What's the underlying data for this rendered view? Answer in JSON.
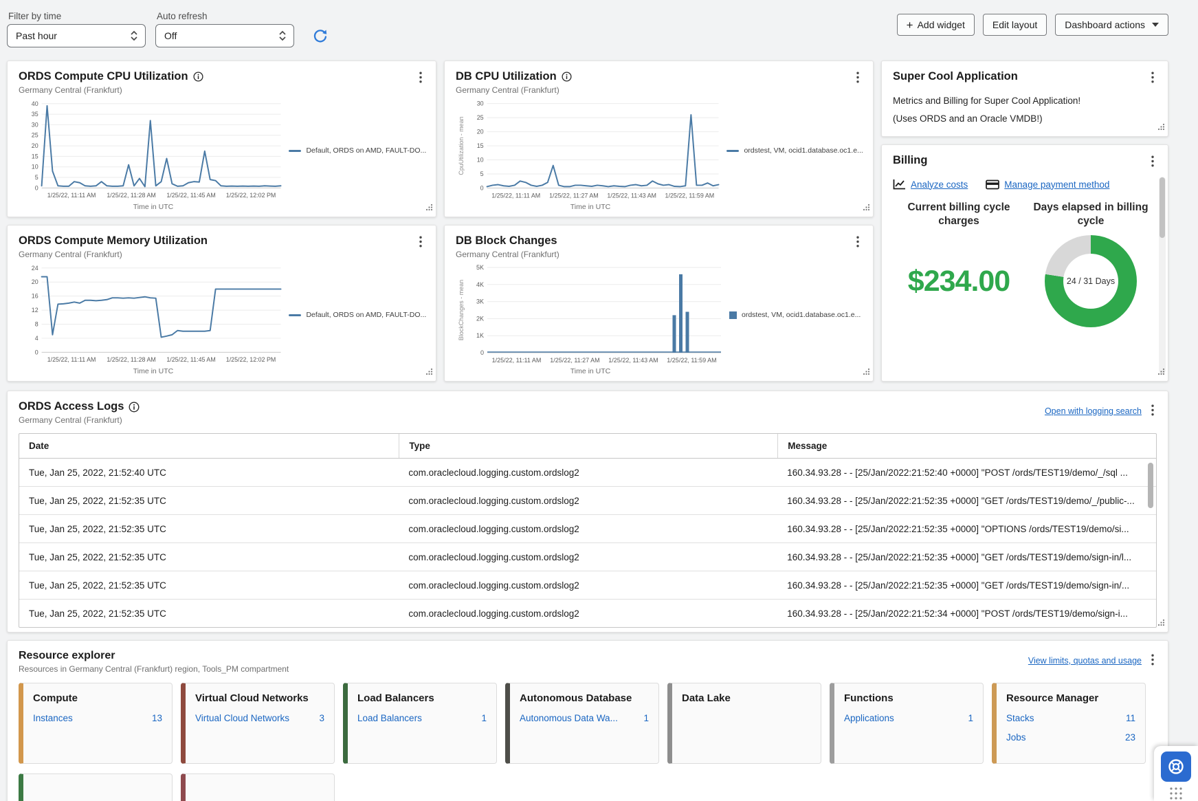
{
  "toolbar": {
    "filter_label": "Filter by time",
    "filter_value": "Past hour",
    "autorefresh_label": "Auto refresh",
    "autorefresh_value": "Off",
    "add_widget": "Add widget",
    "edit_layout": "Edit layout",
    "dashboard_actions": "Dashboard actions"
  },
  "colors": {
    "chart_line": "#4a7aa5",
    "green": "#2fa84c",
    "donut_rest": "#d8d8d8",
    "link_blue": "#1a66c2",
    "refresh_blue": "#2f7bd9",
    "help_blue": "#2b6bd0"
  },
  "charts": [
    {
      "id": "ords-cpu",
      "title": "ORDS Compute CPU Utilization",
      "has_info": true,
      "subtitle": "Germany Central (Frankfurt)",
      "type": "line",
      "ymax": 40,
      "ytick_labels": [
        "0",
        "5",
        "10",
        "15",
        "20",
        "25",
        "30",
        "35",
        "40"
      ],
      "yticks": [
        0,
        5,
        10,
        15,
        20,
        25,
        30,
        35,
        40
      ],
      "ylabel": "",
      "xticks": [
        "1/25/22, 11:11 AM",
        "1/25/22, 11:28 AM",
        "1/25/22, 11:45 AM",
        "1/25/22, 12:02 PM"
      ],
      "xlabel": "Time in UTC",
      "legend": "Default, ORDS on AMD, FAULT-DO...",
      "values": [
        1,
        39,
        8,
        1,
        0.8,
        0.8,
        3,
        2.5,
        1,
        0.8,
        1,
        3,
        1,
        0.8,
        0.8,
        1,
        11,
        1,
        4.5,
        0.6,
        32,
        1,
        3,
        14,
        2,
        0.8,
        1,
        2.5,
        3,
        2.8,
        17.5,
        4,
        3.5,
        1,
        0.8,
        0.9,
        0.8,
        0.9,
        0.8,
        0.9,
        0.8,
        1,
        0.9,
        0.8,
        1
      ]
    },
    {
      "id": "db-cpu",
      "title": "DB CPU Utilization",
      "has_info": true,
      "subtitle": "Germany Central (Frankfurt)",
      "type": "line",
      "ymax": 30,
      "ytick_labels": [
        "0",
        "5",
        "10",
        "15",
        "20",
        "25",
        "30"
      ],
      "yticks": [
        0,
        5,
        10,
        15,
        20,
        25,
        30
      ],
      "ylabel": "CpuUtilization - mean",
      "xticks": [
        "1/25/22, 11:11 AM",
        "1/25/22, 11:27 AM",
        "1/25/22, 11:43 AM",
        "1/25/22, 11:59 AM"
      ],
      "xlabel": "Time in UTC",
      "legend": "ordstest, VM, ocid1.database.oc1.e...",
      "values": [
        0.5,
        1,
        1.2,
        0.8,
        0.6,
        1,
        2.5,
        2,
        1,
        0.6,
        1,
        2,
        8,
        1,
        0.5,
        0.5,
        1,
        1,
        0.8,
        0.6,
        1,
        0.8,
        0.5,
        0.8,
        0.6,
        0.5,
        1,
        1.2,
        0.8,
        1,
        2.5,
        1.5,
        1,
        1.2,
        0.6,
        0.5,
        0.8,
        26,
        1,
        1,
        1.8,
        0.8,
        1.2
      ]
    },
    {
      "id": "ords-mem",
      "title": "ORDS Compute Memory Utilization",
      "has_info": false,
      "subtitle": "Germany Central (Frankfurt)",
      "type": "line",
      "ymax": 24,
      "ytick_labels": [
        "0",
        "4",
        "8",
        "12",
        "16",
        "20",
        "24"
      ],
      "yticks": [
        0,
        4,
        8,
        12,
        16,
        20,
        24
      ],
      "ylabel": "",
      "xticks": [
        "1/25/22, 11:11 AM",
        "1/25/22, 11:28 AM",
        "1/25/22, 11:45 AM",
        "1/25/22, 12:02 PM"
      ],
      "xlabel": "Time in UTC",
      "legend": "Default, ORDS on AMD, FAULT-DO...",
      "values": [
        21.5,
        21.5,
        5,
        13.7,
        13.8,
        14,
        14.3,
        14,
        14.8,
        14.8,
        14.7,
        14.8,
        15,
        15.5,
        15.5,
        15.4,
        15.5,
        15.4,
        15.6,
        15.8,
        15.5,
        15.4,
        4.3,
        4.6,
        5,
        6.2,
        6,
        6,
        6,
        6,
        6,
        6.2,
        18,
        18,
        18,
        18,
        18,
        18,
        18,
        18,
        18,
        18,
        18,
        18,
        18
      ]
    },
    {
      "id": "db-block",
      "title": "DB Block Changes",
      "has_info": false,
      "subtitle": "Germany Central (Frankfurt)",
      "type": "bar",
      "ymax": 5000,
      "ytick_labels": [
        "0",
        "1K",
        "2K",
        "3K",
        "4K",
        "5K"
      ],
      "yticks": [
        0,
        1000,
        2000,
        3000,
        4000,
        5000
      ],
      "ylabel": "BlockChanges - mean",
      "xticks": [
        "1/25/22, 11:11 AM",
        "1/25/22, 11:27 AM",
        "1/25/22, 11:43 AM",
        "1/25/22, 11:59 AM"
      ],
      "xlabel": "Time in UTC",
      "legend": "ordstest, VM, ocid1.database.oc1.e...",
      "bars": [
        {
          "x": 0.8,
          "value": 2200
        },
        {
          "x": 0.828,
          "value": 4600
        },
        {
          "x": 0.856,
          "value": 2400
        }
      ]
    }
  ],
  "app_widget": {
    "title": "Super Cool Application",
    "line1": "Metrics and Billing for Super Cool Application!",
    "line2": "(Uses ORDS and an Oracle VMDB!)"
  },
  "billing": {
    "title": "Billing",
    "analyze_link": "Analyze costs",
    "payment_link": "Manage payment method",
    "col1_header": "Current billing cycle charges",
    "col2_header": "Days elapsed in billing cycle",
    "amount": "$234.00",
    "donut": {
      "elapsed": 24,
      "total": 31,
      "pct": 77.42,
      "label": "24 / 31 Days"
    }
  },
  "logs": {
    "title": "ORDS Access Logs",
    "subtitle": "Germany Central (Frankfurt)",
    "action": "Open with logging search",
    "columns": [
      "Date",
      "Type",
      "Message"
    ],
    "rows": [
      [
        "Tue, Jan 25, 2022, 21:52:40 UTC",
        "com.oraclecloud.logging.custom.ordslog2",
        "160.34.93.28 - - [25/Jan/2022:21:52:40 +0000] \"POST /ords/TEST19/demo/_/sql ..."
      ],
      [
        "Tue, Jan 25, 2022, 21:52:35 UTC",
        "com.oraclecloud.logging.custom.ordslog2",
        "160.34.93.28 - - [25/Jan/2022:21:52:35 +0000] \"GET /ords/TEST19/demo/_/public-..."
      ],
      [
        "Tue, Jan 25, 2022, 21:52:35 UTC",
        "com.oraclecloud.logging.custom.ordslog2",
        "160.34.93.28 - - [25/Jan/2022:21:52:35 +0000] \"OPTIONS /ords/TEST19/demo/si..."
      ],
      [
        "Tue, Jan 25, 2022, 21:52:35 UTC",
        "com.oraclecloud.logging.custom.ordslog2",
        "160.34.93.28 - - [25/Jan/2022:21:52:35 +0000] \"GET /ords/TEST19/demo/sign-in/l..."
      ],
      [
        "Tue, Jan 25, 2022, 21:52:35 UTC",
        "com.oraclecloud.logging.custom.ordslog2",
        "160.34.93.28 - - [25/Jan/2022:21:52:35 +0000] \"GET /ords/TEST19/demo/sign-in/..."
      ],
      [
        "Tue, Jan 25, 2022, 21:52:35 UTC",
        "com.oraclecloud.logging.custom.ordslog2",
        "160.34.93.28 - - [25/Jan/2022:21:52:34 +0000] \"POST /ords/TEST19/demo/sign-i..."
      ]
    ]
  },
  "resources": {
    "title": "Resource explorer",
    "subtitle": "Resources in Germany Central (Frankfurt) region, Tools_PM compartment",
    "action": "View limits, quotas and usage",
    "cards": [
      {
        "title": "Compute",
        "accent": "#d2974c",
        "items": [
          {
            "label": "Instances",
            "count": "13"
          }
        ]
      },
      {
        "title": "Virtual Cloud Networks",
        "accent": "#8f4a3e",
        "items": [
          {
            "label": "Virtual Cloud Networks",
            "count": "3"
          }
        ]
      },
      {
        "title": "Load Balancers",
        "accent": "#3c6b3f",
        "items": [
          {
            "label": "Load Balancers",
            "count": "1"
          }
        ]
      },
      {
        "title": "Autonomous Database",
        "accent": "#4e4e49",
        "items": [
          {
            "label": "Autonomous Data Wa...",
            "count": "1"
          }
        ]
      },
      {
        "title": "Data Lake",
        "accent": "#8e8e8e",
        "items": []
      },
      {
        "title": "Functions",
        "accent": "#9d9d9d",
        "items": [
          {
            "label": "Applications",
            "count": "1"
          }
        ]
      },
      {
        "title": "Resource Manager",
        "accent": "#cd9a55",
        "items": [
          {
            "label": "Stacks",
            "count": "11"
          },
          {
            "label": "Jobs",
            "count": "23"
          }
        ]
      }
    ],
    "partial_cards": [
      {
        "accent": "#3c7a44"
      },
      {
        "accent": "#8f4a4e"
      }
    ]
  }
}
